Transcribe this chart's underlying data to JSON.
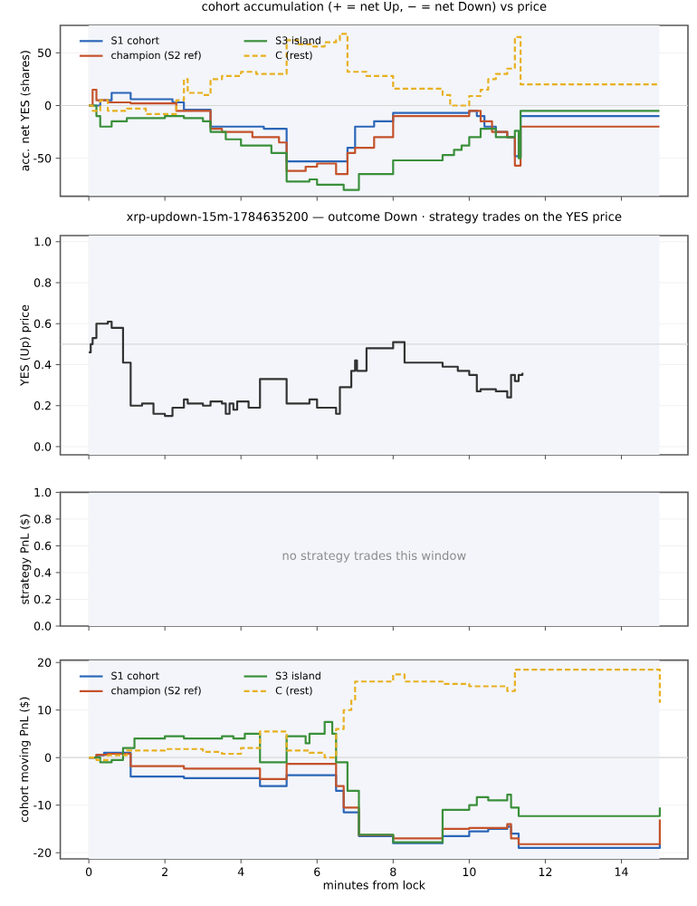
{
  "chart_data": [
    {
      "type": "step",
      "title": "cohort accumulation (+ = net Up, − = net Down) vs price",
      "ylabel": "acc. net YES (shares)",
      "xlim": [
        -0.75,
        15.75
      ],
      "xticks": [
        0,
        2,
        4,
        6,
        8,
        10,
        12,
        14
      ],
      "ylim": [
        -86,
        76
      ],
      "yticks": [
        -50,
        0,
        50
      ],
      "grid": true,
      "legend": "top left",
      "tick_labels": "y",
      "ref_lines": [
        {
          "axis": "y",
          "value": 0,
          "color": "#d8d8d8"
        }
      ],
      "bands": [
        {
          "axis": "x",
          "from": 0,
          "to": 15,
          "color": "#f3f5fa"
        }
      ],
      "series": [
        {
          "name": "S1 cohort",
          "color": "#2b66b8",
          "x": [
            0,
            0.3,
            0.6,
            1.1,
            2.2,
            2.5,
            3.2,
            4.6,
            5.2,
            6.8,
            7.0,
            7.5,
            8.0,
            10.0,
            10.2,
            10.4,
            10.7,
            11.0,
            11.2,
            11.35,
            15
          ],
          "values": [
            0,
            5,
            12,
            6,
            3,
            -4,
            -20,
            -22,
            -53,
            -40,
            -20,
            -15,
            -7,
            -5,
            -10,
            -20,
            -25,
            -30,
            -48,
            -10,
            -10
          ]
        },
        {
          "name": "champion (S2 ref)",
          "color": "#c4522a",
          "x": [
            0,
            0.1,
            0.2,
            0.5,
            1.1,
            2.3,
            3.2,
            3.5,
            4.3,
            5.0,
            5.2,
            5.7,
            6.0,
            6.5,
            6.8,
            7.0,
            7.5,
            8.0,
            9.3,
            10.0,
            10.3,
            10.6,
            11.0,
            11.2,
            11.35,
            15
          ],
          "values": [
            0,
            15,
            5,
            3,
            2,
            -5,
            -22,
            -25,
            -30,
            -35,
            -62,
            -58,
            -55,
            -65,
            -45,
            -40,
            -30,
            -10,
            -10,
            -5,
            -15,
            -25,
            -30,
            -57,
            -20,
            -20
          ]
        },
        {
          "name": "S3 island",
          "color": "#3a8f3a",
          "x": [
            0,
            0.2,
            0.3,
            0.6,
            1.0,
            2.0,
            2.5,
            3.0,
            3.2,
            3.6,
            4.0,
            4.8,
            5.2,
            5.8,
            6.0,
            6.7,
            7.1,
            8.0,
            9.3,
            9.6,
            9.8,
            10.0,
            10.3,
            10.7,
            11.2,
            11.3,
            11.35,
            15
          ],
          "values": [
            0,
            -10,
            -20,
            -15,
            -12,
            -10,
            -12,
            -15,
            -25,
            -32,
            -38,
            -45,
            -72,
            -70,
            -75,
            -80,
            -65,
            -52,
            -47,
            -42,
            -38,
            -30,
            -22,
            -30,
            -24,
            -50,
            -5,
            -5
          ]
        },
        {
          "name": "C (rest)",
          "color": "#e8b020",
          "line_style": "dashed",
          "x": [
            0,
            0.1,
            0.3,
            0.5,
            1.0,
            1.5,
            2.3,
            2.5,
            2.6,
            3.0,
            3.2,
            3.5,
            4.0,
            4.4,
            5.2,
            5.5,
            5.9,
            6.2,
            6.5,
            6.6,
            6.8,
            7.3,
            8.0,
            9.3,
            9.5,
            10.0,
            10.3,
            10.5,
            10.7,
            11.0,
            11.2,
            11.35,
            15
          ],
          "values": [
            0,
            -5,
            5,
            -5,
            -3,
            -8,
            5,
            25,
            12,
            10,
            25,
            28,
            32,
            30,
            62,
            58,
            56,
            60,
            62,
            68,
            32,
            28,
            16,
            10,
            0,
            9,
            15,
            25,
            30,
            35,
            65,
            20,
            20
          ]
        }
      ]
    },
    {
      "type": "step",
      "title": "xrp-updown-15m-1784635200 — outcome Down · strategy trades on the YES price",
      "ylabel": "YES (Up) price",
      "xlim": [
        -0.75,
        15.75
      ],
      "xticks": [
        0,
        2,
        4,
        6,
        8,
        10,
        12,
        14
      ],
      "ylim": [
        -0.04,
        1.03
      ],
      "yticks": [
        {
          "value": 0,
          "label": "0.0"
        },
        {
          "value": 0.2,
          "label": "0.2"
        },
        {
          "value": 0.4,
          "label": "0.4"
        },
        {
          "value": 0.6,
          "label": "0.6"
        },
        {
          "value": 0.8,
          "label": "0.8"
        },
        {
          "value": 1,
          "label": "1.0"
        }
      ],
      "grid": true,
      "tick_labels": "y",
      "ref_lines": [
        {
          "axis": "y",
          "value": 0.5,
          "color": "#d8d8d8"
        }
      ],
      "bands": [
        {
          "axis": "x",
          "from": 0,
          "to": 15,
          "color": "#f3f5fa"
        }
      ],
      "series": [
        {
          "color": "#333333",
          "x": [
            0,
            0.05,
            0.1,
            0.2,
            0.5,
            0.6,
            0.9,
            1.1,
            1.4,
            1.7,
            2.0,
            2.2,
            2.5,
            2.6,
            3.0,
            3.2,
            3.5,
            3.6,
            3.7,
            3.8,
            3.9,
            4.2,
            4.5,
            5.2,
            5.8,
            6.0,
            6.5,
            6.6,
            6.9,
            7.0,
            7.05,
            7.3,
            8.0,
            8.3,
            9.3,
            9.7,
            10.0,
            10.2,
            10.3,
            10.7,
            11.0,
            11.1,
            11.2,
            11.3,
            11.4
          ],
          "values": [
            0.46,
            0.5,
            0.53,
            0.6,
            0.61,
            0.58,
            0.41,
            0.2,
            0.21,
            0.16,
            0.15,
            0.19,
            0.23,
            0.21,
            0.2,
            0.22,
            0.21,
            0.16,
            0.21,
            0.18,
            0.22,
            0.19,
            0.33,
            0.21,
            0.23,
            0.19,
            0.16,
            0.29,
            0.37,
            0.42,
            0.37,
            0.48,
            0.51,
            0.41,
            0.39,
            0.37,
            0.35,
            0.27,
            0.28,
            0.27,
            0.24,
            0.35,
            0.32,
            0.35,
            0.36
          ]
        }
      ]
    },
    {
      "type": "step",
      "ylabel": "strategy PnL ($)",
      "xlim": [
        -0.75,
        15.75
      ],
      "xticks": [
        0,
        2,
        4,
        6,
        8,
        10,
        12,
        14
      ],
      "ylim": [
        0,
        1
      ],
      "yticks": [
        {
          "value": 0,
          "label": "0.0"
        },
        {
          "value": 0.2,
          "label": "0.2"
        },
        {
          "value": 0.4,
          "label": "0.4"
        },
        {
          "value": 0.6,
          "label": "0.6"
        },
        {
          "value": 0.8,
          "label": "0.8"
        },
        {
          "value": 1,
          "label": "1.0"
        }
      ],
      "grid": true,
      "tick_labels": "y",
      "bands": [
        {
          "axis": "x",
          "from": 0,
          "to": 15,
          "color": "#f3f5fa"
        }
      ],
      "annotations": [
        "no strategy trades this window"
      ]
    },
    {
      "type": "step",
      "xlabel": "minutes from lock",
      "ylabel": "cohort moving PnL ($)",
      "xlim": [
        -0.75,
        15.75
      ],
      "xticks": [
        0,
        2,
        4,
        6,
        8,
        10,
        12,
        14
      ],
      "ylim": [
        -21.3,
        20.5
      ],
      "yticks": [
        -20,
        -10,
        0,
        10,
        20
      ],
      "grid": true,
      "legend": "top left",
      "ref_lines": [
        {
          "axis": "y",
          "value": 0,
          "color": "#d8d8d8"
        }
      ],
      "bands": [
        {
          "axis": "x",
          "from": 0,
          "to": 15,
          "color": "#f3f5fa"
        }
      ],
      "series": [
        {
          "name": "S1 cohort",
          "color": "#2b66b8",
          "x": [
            0,
            0.2,
            0.4,
            1.1,
            2.5,
            4.5,
            5.2,
            6.5,
            6.7,
            7.1,
            8.0,
            9.3,
            10.0,
            10.5,
            11.0,
            11.1,
            11.3,
            15,
            15.01
          ],
          "values": [
            0,
            0.5,
            1,
            -4,
            -4.3,
            -6,
            -3.7,
            -7,
            -11.5,
            -16.5,
            -18,
            -16.5,
            -15.5,
            -15,
            -14.5,
            -16,
            -19,
            -19,
            -18
          ]
        },
        {
          "name": "champion (S2 ref)",
          "color": "#c4522a",
          "x": [
            0,
            0.2,
            0.5,
            1.1,
            2.5,
            4.5,
            5.2,
            6.5,
            6.7,
            7.1,
            8.0,
            9.3,
            10.0,
            11.0,
            11.1,
            11.3,
            15,
            15.01
          ],
          "values": [
            0,
            0.6,
            0.8,
            -1.8,
            -2.3,
            -4.5,
            -1.3,
            -6,
            -10.5,
            -16.3,
            -17,
            -15,
            -14.8,
            -14,
            -17,
            -18.2,
            -18.2,
            -13
          ]
        },
        {
          "name": "S3 island",
          "color": "#3a8f3a",
          "x": [
            0,
            0.3,
            0.6,
            0.9,
            1.2,
            2.0,
            2.5,
            3.5,
            3.8,
            4.1,
            4.5,
            5.2,
            5.7,
            5.8,
            6.2,
            6.4,
            6.5,
            6.8,
            7.1,
            8.0,
            9.3,
            10.0,
            10.2,
            10.5,
            11.0,
            11.1,
            11.3,
            15,
            15.01
          ],
          "values": [
            0,
            -1,
            -0.5,
            2,
            4,
            4.5,
            4,
            4.5,
            4,
            5,
            -1,
            4.5,
            3,
            5,
            7.5,
            5,
            -1,
            -7,
            -16.2,
            -17.8,
            -11,
            -10,
            -8.3,
            -9,
            -7.8,
            -10.5,
            -12.3,
            -12.3,
            -10.5
          ]
        },
        {
          "name": "C (rest)",
          "color": "#e8b020",
          "line_style": "dashed",
          "x": [
            0,
            0.2,
            0.5,
            1.0,
            2.0,
            3.0,
            3.5,
            4.0,
            4.5,
            5.2,
            5.8,
            6.2,
            6.5,
            6.7,
            6.9,
            7.0,
            8.0,
            8.3,
            9.3,
            10.0,
            11.0,
            11.2,
            15,
            15.01
          ],
          "values": [
            0,
            -0.5,
            0.5,
            1.5,
            1.8,
            1.2,
            0.8,
            2,
            5.5,
            1.5,
            1,
            0,
            6,
            10,
            12,
            16,
            17.5,
            16,
            15.5,
            15,
            14,
            18.5,
            18.5,
            11.5
          ]
        }
      ]
    }
  ]
}
